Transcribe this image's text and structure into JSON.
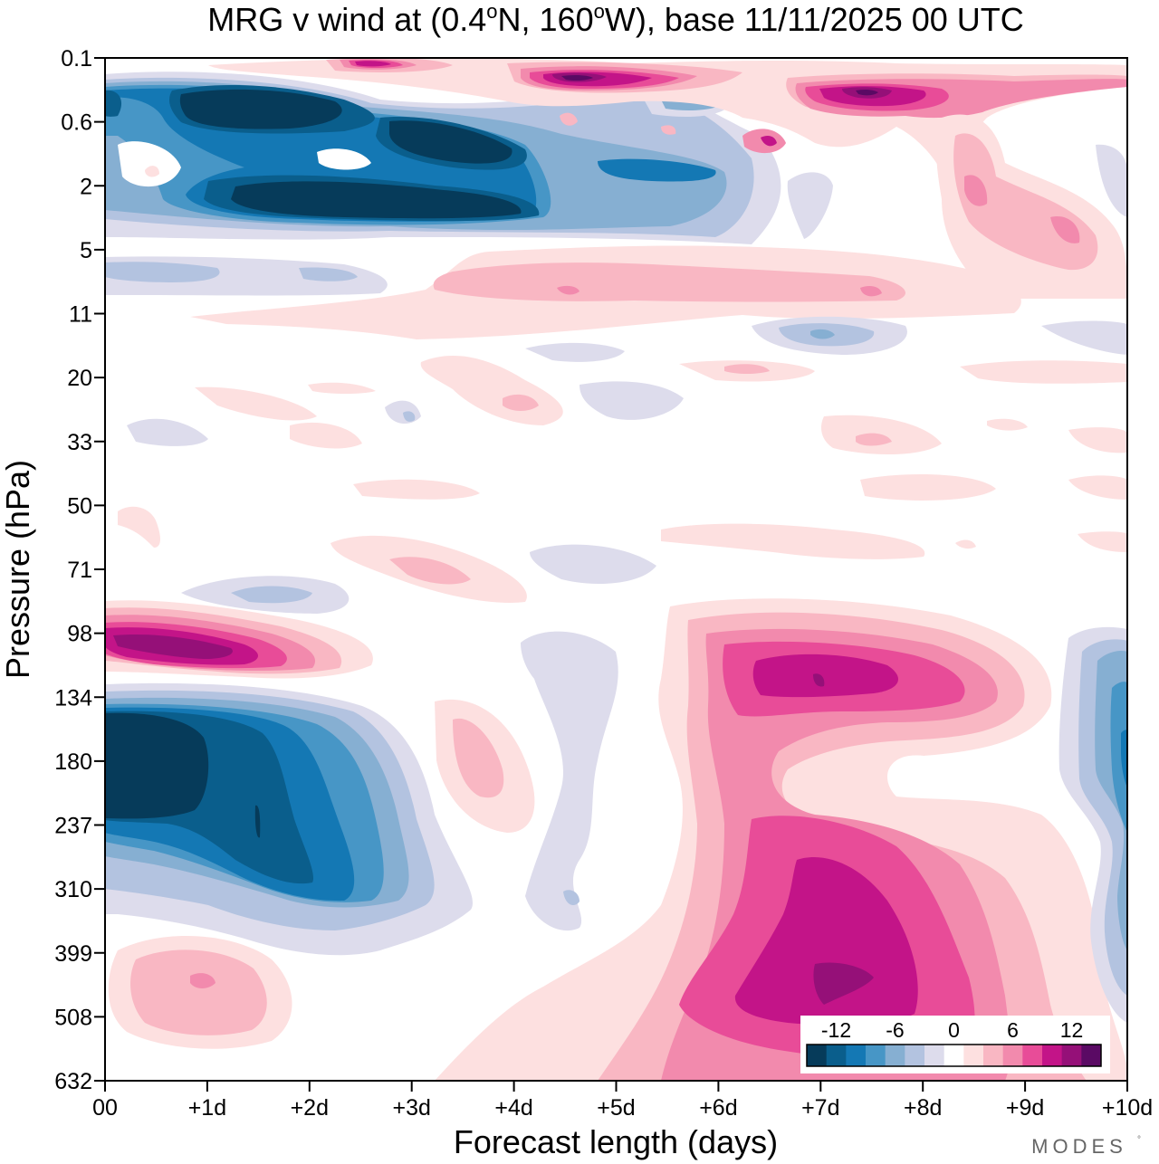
{
  "chart_data": {
    "type": "heatmap",
    "title": "MRG v wind at (0.4°N, 160°W),  base 11/11/2025  00 UTC",
    "title_parts": {
      "pre": "MRG v wind at (0.4",
      "deg1": "o",
      "mid": "N, 160",
      "deg2": "o",
      "post": "W),  base 11/11/2025  00 UTC"
    },
    "xlabel": "Forecast length (days)",
    "ylabel": "Pressure (hPa)",
    "x_ticks": [
      "00",
      "+1d",
      "+2d",
      "+3d",
      "+4d",
      "+5d",
      "+6d",
      "+7d",
      "+8d",
      "+9d",
      "+10d"
    ],
    "x_range_days": [
      0,
      10
    ],
    "y_ticks": [
      "0.1",
      "0.6",
      "2",
      "5",
      "11",
      "20",
      "33",
      "50",
      "71",
      "98",
      "134",
      "180",
      "237",
      "310",
      "399",
      "508",
      "632"
    ],
    "y_range_hPa": [
      0.1,
      632
    ],
    "colorbar": {
      "labels": [
        "-12",
        "-6",
        "0",
        "6",
        "12"
      ],
      "levels": [
        -14,
        -12,
        -10,
        -8,
        -6,
        -4,
        -2,
        0,
        2,
        4,
        6,
        8,
        10,
        12,
        14
      ],
      "colors": [
        "#063b5a",
        "#0a5e8c",
        "#1478b4",
        "#4796c6",
        "#86afd2",
        "#b3c3e0",
        "#dddcec",
        "#ffffff",
        "#fde0e0",
        "#f9b7c3",
        "#f28aad",
        "#e84c98",
        "#c31488",
        "#951078",
        "#5a0a64"
      ]
    },
    "features": [
      {
        "name": "upper-neg-band-1",
        "x": [
          0,
          3.8
        ],
        "y_hPa": [
          0.3,
          0.9
        ],
        "value": -14
      },
      {
        "name": "upper-neg-band-2",
        "x": [
          2.8,
          4.2
        ],
        "y_hPa": [
          0.8,
          1.6
        ],
        "value": -14
      },
      {
        "name": "upper-neg-band-3",
        "x": [
          1.3,
          4.2
        ],
        "y_hPa": [
          2,
          3.2
        ],
        "value": -14
      },
      {
        "name": "top-pos-band",
        "x": [
          4.1,
          5.6
        ],
        "y_hPa": [
          0.15,
          0.3
        ],
        "value": 14
      },
      {
        "name": "top-pos-band-right",
        "x": [
          7,
          8.5
        ],
        "y_hPa": [
          0.3,
          0.6
        ],
        "value": 14
      },
      {
        "name": "pos-jet-98hPa",
        "x": [
          0,
          2.5
        ],
        "y_hPa": [
          90,
          120
        ],
        "value": 12
      },
      {
        "name": "neg-core-180hPa",
        "x": [
          0,
          3
        ],
        "y_hPa": [
          134,
          450
        ],
        "value": -14
      },
      {
        "name": "pos-core-upper",
        "x": [
          6.4,
          8.6
        ],
        "y_hPa": [
          98,
          160
        ],
        "value": 12
      },
      {
        "name": "pos-core-lower",
        "x": [
          6.2,
          8.5
        ],
        "y_hPa": [
          240,
          560
        ],
        "value": 12
      },
      {
        "name": "neg-right-edge",
        "x": [
          9.3,
          10
        ],
        "y_hPa": [
          98,
          600
        ],
        "value": -8
      },
      {
        "name": "pos-low-left",
        "x": [
          0.2,
          1.8
        ],
        "y_hPa": [
          380,
          560
        ],
        "value": 4
      }
    ]
  },
  "watermark": "MODES"
}
